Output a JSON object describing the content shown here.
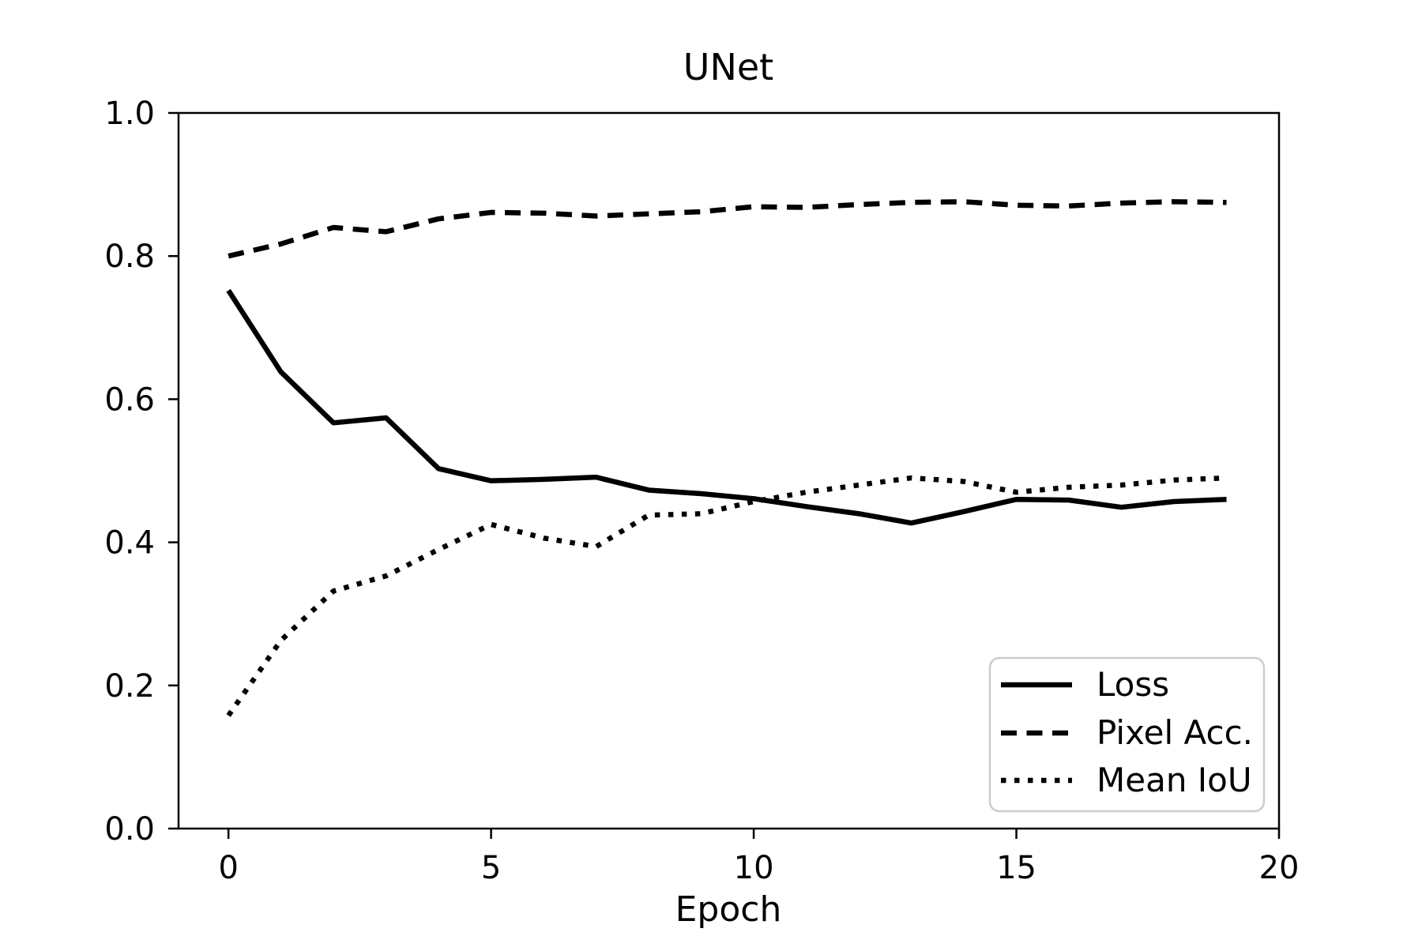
{
  "chart_data": {
    "type": "line",
    "title": "UNet",
    "xlabel": "Epoch",
    "ylabel": "",
    "grid": false,
    "legend_position": "lower right",
    "line_color": "#000000",
    "background_color": "#ffffff",
    "legend_border_color": "#cccccc",
    "xlim": [
      -0.95,
      20.0
    ],
    "ylim": [
      0.0,
      1.0
    ],
    "x_ticks": [
      0,
      5,
      10,
      15,
      20
    ],
    "y_ticks": [
      0.0,
      0.2,
      0.4,
      0.6,
      0.8,
      1.0
    ],
    "x": [
      0,
      1,
      2,
      3,
      4,
      5,
      6,
      7,
      8,
      9,
      10,
      11,
      12,
      13,
      14,
      15,
      16,
      17,
      18,
      19
    ],
    "series": [
      {
        "name": "Loss",
        "style": "solid",
        "values": [
          0.752,
          0.638,
          0.567,
          0.574,
          0.503,
          0.486,
          0.488,
          0.491,
          0.473,
          0.468,
          0.461,
          0.45,
          0.44,
          0.427,
          0.443,
          0.46,
          0.459,
          0.449,
          0.457,
          0.46
        ]
      },
      {
        "name": "Pixel Acc.",
        "style": "dashed",
        "values": [
          0.8,
          0.817,
          0.84,
          0.834,
          0.852,
          0.861,
          0.86,
          0.856,
          0.859,
          0.862,
          0.869,
          0.868,
          0.872,
          0.875,
          0.876,
          0.871,
          0.87,
          0.874,
          0.876,
          0.875
        ]
      },
      {
        "name": "Mean IoU",
        "style": "dotted",
        "values": [
          0.158,
          0.263,
          0.332,
          0.353,
          0.39,
          0.425,
          0.406,
          0.394,
          0.438,
          0.44,
          0.457,
          0.47,
          0.48,
          0.49,
          0.485,
          0.47,
          0.477,
          0.48,
          0.487,
          0.49
        ]
      }
    ]
  }
}
